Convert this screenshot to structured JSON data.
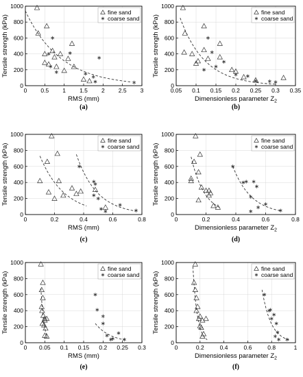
{
  "chart_data": [
    {
      "id": "a",
      "panel_label": "(a)",
      "type": "scatter",
      "xlabel": "RMS (mm)",
      "ylabel": "Tensile strength (kPa)",
      "xlim": [
        0,
        3
      ],
      "ylim": [
        0,
        1000
      ],
      "xticks": [
        0,
        0.5,
        1,
        1.5,
        2,
        2.5,
        3
      ],
      "xticklabels": [
        "0",
        "0.5",
        "1",
        "1.5",
        "2",
        "2.5",
        "3"
      ],
      "yticks": [
        0,
        200,
        400,
        600,
        800,
        1000
      ],
      "legend_position": "top-right",
      "series": [
        {
          "name": "fine sand",
          "marker": "triangle",
          "points": [
            [
              0.3,
              980
            ],
            [
              0.33,
              660
            ],
            [
              0.55,
              750
            ],
            [
              0.5,
              400
            ],
            [
              0.5,
              290
            ],
            [
              0.7,
              440
            ],
            [
              0.75,
              360
            ],
            [
              0.9,
              400
            ],
            [
              0.6,
              270
            ],
            [
              0.8,
              240
            ],
            [
              1.2,
              530
            ],
            [
              1.1,
              340
            ],
            [
              1.0,
              190
            ],
            [
              1.25,
              240
            ],
            [
              1.5,
              80
            ],
            [
              1.65,
              60
            ]
          ]
        },
        {
          "name": "coarse sand",
          "marker": "asterisk",
          "points": [
            [
              0.7,
              600
            ],
            [
              0.6,
              400
            ],
            [
              1.15,
              410
            ],
            [
              0.65,
              240
            ],
            [
              0.8,
              170
            ],
            [
              1.9,
              350
            ],
            [
              1.55,
              150
            ],
            [
              1.75,
              110
            ],
            [
              1.8,
              50
            ],
            [
              2.8,
              40
            ]
          ]
        }
      ],
      "fits": [
        {
          "x": [
            0,
            2.75
          ],
          "a": 940,
          "b": 1.1,
          "model": "exp"
        }
      ]
    },
    {
      "id": "b",
      "panel_label": "(b)",
      "type": "scatter",
      "xlabel": "Dimensionless parameter Z",
      "xlabel_sub": "2",
      "ylabel": "Tensile strength (kPa)",
      "xlim": [
        0.05,
        0.35
      ],
      "ylim": [
        0,
        1000
      ],
      "xticks": [
        0.05,
        0.1,
        0.15,
        0.2,
        0.25,
        0.3,
        0.35
      ],
      "xticklabels": [
        "0.05",
        "0.1",
        "0.15",
        "0.2",
        "0.25",
        "0.3",
        "0.35"
      ],
      "yticks": [
        0,
        200,
        400,
        600,
        800,
        1000
      ],
      "legend_position": "top-right",
      "series": [
        {
          "name": "fine sand",
          "marker": "triangle",
          "points": [
            [
              0.067,
              980
            ],
            [
              0.072,
              660
            ],
            [
              0.07,
              420
            ],
            [
              0.12,
              750
            ],
            [
              0.09,
              400
            ],
            [
              0.1,
              280
            ],
            [
              0.105,
              310
            ],
            [
              0.12,
              450
            ],
            [
              0.16,
              530
            ],
            [
              0.13,
              340
            ],
            [
              0.16,
              360
            ],
            [
              0.19,
              200
            ],
            [
              0.2,
              180
            ],
            [
              0.22,
              110
            ],
            [
              0.32,
              100
            ],
            [
              0.25,
              70
            ]
          ]
        },
        {
          "name": "coarse sand",
          "marker": "asterisk",
          "points": [
            [
              0.13,
              600
            ],
            [
              0.14,
              420
            ],
            [
              0.12,
              200
            ],
            [
              0.15,
              240
            ],
            [
              0.17,
              300
            ],
            [
              0.2,
              140
            ],
            [
              0.23,
              120
            ],
            [
              0.25,
              60
            ],
            [
              0.285,
              55
            ],
            [
              0.3,
              45
            ]
          ]
        }
      ],
      "fits": [
        {
          "x": [
            0.06,
            0.3
          ],
          "a": 1000,
          "b": 16,
          "x0": 0.05,
          "model": "exp"
        }
      ]
    },
    {
      "id": "c",
      "panel_label": "(c)",
      "type": "scatter",
      "xlabel": "RMS (mm)",
      "ylabel": "Tensile strength (kPa)",
      "xlim": [
        0,
        0.8
      ],
      "ylim": [
        0,
        1000
      ],
      "xticks": [
        0,
        0.2,
        0.4,
        0.6,
        0.8
      ],
      "xticklabels": [
        "0",
        "0.2",
        "0.4",
        "0.6",
        "0.8"
      ],
      "yticks": [
        0,
        200,
        400,
        600,
        800,
        1000
      ],
      "legend_position": "top-right",
      "series": [
        {
          "name": "fine sand",
          "marker": "triangle",
          "points": [
            [
              0.18,
              980
            ],
            [
              0.1,
              420
            ],
            [
              0.15,
              660
            ],
            [
              0.22,
              760
            ],
            [
              0.16,
              280
            ],
            [
              0.2,
              200
            ],
            [
              0.23,
              420
            ],
            [
              0.26,
              240
            ],
            [
              0.32,
              330
            ],
            [
              0.38,
              290
            ],
            [
              0.35,
              260
            ],
            [
              0.48,
              310
            ],
            [
              0.55,
              90
            ]
          ]
        },
        {
          "name": "coarse sand",
          "marker": "asterisk",
          "points": [
            [
              0.37,
              600
            ],
            [
              0.47,
              410
            ],
            [
              0.48,
              380
            ],
            [
              0.47,
              240
            ],
            [
              0.5,
              200
            ],
            [
              0.52,
              70
            ],
            [
              0.55,
              40
            ],
            [
              0.65,
              120
            ],
            [
              0.76,
              50
            ]
          ]
        }
      ],
      "fits": [
        {
          "x": [
            0.1,
            0.42
          ],
          "a": 730,
          "b": 6,
          "x0": 0.1,
          "model": "exp"
        },
        {
          "x": [
            0.35,
            0.76
          ],
          "a": 750,
          "b": 7,
          "x0": 0.35,
          "model": "exp"
        }
      ]
    },
    {
      "id": "d",
      "panel_label": "(d)",
      "type": "scatter",
      "xlabel": "Dimensionless parameter Z",
      "xlabel_sub": "2",
      "ylabel": "Tensile strength (kPa)",
      "xlim": [
        0,
        0.8
      ],
      "ylim": [
        0,
        1000
      ],
      "xticks": [
        0,
        0.2,
        0.4,
        0.6,
        0.8
      ],
      "xticklabels": [
        "0",
        "0.2",
        "0.4",
        "0.6",
        "0.8"
      ],
      "yticks": [
        0,
        200,
        400,
        600,
        800,
        1000
      ],
      "legend_position": "top-right",
      "series": [
        {
          "name": "fine sand",
          "marker": "triangle",
          "points": [
            [
              0.13,
              980
            ],
            [
              0.1,
              420
            ],
            [
              0.12,
              660
            ],
            [
              0.16,
              750
            ],
            [
              0.1,
              450
            ],
            [
              0.15,
              530
            ],
            [
              0.17,
              340
            ],
            [
              0.15,
              180
            ],
            [
              0.2,
              300
            ],
            [
              0.22,
              240
            ],
            [
              0.23,
              270
            ],
            [
              0.25,
              110
            ],
            [
              0.28,
              90
            ],
            [
              0.22,
              300
            ]
          ]
        },
        {
          "name": "coarse sand",
          "marker": "asterisk",
          "points": [
            [
              0.38,
              600
            ],
            [
              0.47,
              410
            ],
            [
              0.52,
              410
            ],
            [
              0.54,
              350
            ],
            [
              0.45,
              400
            ],
            [
              0.5,
              220
            ],
            [
              0.55,
              90
            ],
            [
              0.5,
              40
            ],
            [
              0.6,
              130
            ],
            [
              0.7,
              50
            ]
          ]
        }
      ],
      "fits": [
        {
          "x": [
            0.1,
            0.3
          ],
          "a": 720,
          "b": 11,
          "x0": 0.1,
          "model": "exp"
        },
        {
          "x": [
            0.38,
            0.7
          ],
          "a": 600,
          "b": 8,
          "x0": 0.38,
          "model": "exp"
        }
      ]
    },
    {
      "id": "e",
      "panel_label": "(e)",
      "type": "scatter",
      "xlabel": "RMS (mm)",
      "ylabel": "Tensile strength (kPa)",
      "xlim": [
        0,
        0.3
      ],
      "ylim": [
        0,
        1000
      ],
      "xticks": [
        0,
        0.05,
        0.1,
        0.15,
        0.2,
        0.25,
        0.3
      ],
      "xticklabels": [
        "0",
        "0.05",
        "0.1",
        "0.15",
        "0.2",
        "0.25",
        "0.3"
      ],
      "yticks": [
        0,
        200,
        400,
        600,
        800,
        1000
      ],
      "legend_position": "top-right",
      "series": [
        {
          "name": "fine sand",
          "marker": "triangle",
          "points": [
            [
              0.04,
              980
            ],
            [
              0.042,
              660
            ],
            [
              0.045,
              750
            ],
            [
              0.043,
              400
            ],
            [
              0.046,
              340
            ],
            [
              0.05,
              280
            ],
            [
              0.044,
              240
            ],
            [
              0.048,
              220
            ],
            [
              0.05,
              300
            ],
            [
              0.055,
              300
            ],
            [
              0.052,
              180
            ],
            [
              0.05,
              90
            ],
            [
              0.055,
              80
            ],
            [
              0.045,
              560
            ],
            [
              0.042,
              450
            ]
          ]
        },
        {
          "name": "coarse sand",
          "marker": "asterisk",
          "points": [
            [
              0.18,
              600
            ],
            [
              0.185,
              410
            ],
            [
              0.2,
              330
            ],
            [
              0.2,
              240
            ],
            [
              0.21,
              90
            ],
            [
              0.22,
              40
            ],
            [
              0.225,
              50
            ],
            [
              0.24,
              120
            ],
            [
              0.255,
              40
            ]
          ]
        }
      ],
      "fits": [
        {
          "x": [
            0.04,
            0.055
          ],
          "a": 680,
          "b": 130,
          "x0": 0.04,
          "model": "exp"
        },
        {
          "x": [
            0.18,
            0.255
          ],
          "a": 240,
          "b": 25,
          "x0": 0.18,
          "model": "exp"
        }
      ]
    },
    {
      "id": "f",
      "panel_label": "(f)",
      "type": "scatter",
      "xlabel": "Dimensionless parameter Z",
      "xlabel_sub": "2",
      "ylabel": "Tensile strength (kPa)",
      "xlim": [
        0,
        1
      ],
      "ylim": [
        0,
        1000
      ],
      "xticks": [
        0,
        0.2,
        0.4,
        0.6,
        0.8,
        1
      ],
      "xticklabels": [
        "0",
        "0.2",
        "0.4",
        "0.6",
        "0.8",
        "1"
      ],
      "yticks": [
        0,
        200,
        400,
        600,
        800,
        1000
      ],
      "legend_position": "top-right",
      "series": [
        {
          "name": "fine sand",
          "marker": "triangle",
          "points": [
            [
              0.16,
              980
            ],
            [
              0.15,
              750
            ],
            [
              0.16,
              660
            ],
            [
              0.17,
              560
            ],
            [
              0.18,
              450
            ],
            [
              0.17,
              400
            ],
            [
              0.2,
              330
            ],
            [
              0.19,
              300
            ],
            [
              0.22,
              280
            ],
            [
              0.2,
              210
            ],
            [
              0.21,
              190
            ],
            [
              0.23,
              110
            ],
            [
              0.22,
              80
            ],
            [
              0.25,
              300
            ]
          ]
        },
        {
          "name": "coarse sand",
          "marker": "asterisk",
          "points": [
            [
              0.74,
              600
            ],
            [
              0.79,
              410
            ],
            [
              0.78,
              400
            ],
            [
              0.82,
              350
            ],
            [
              0.8,
              300
            ],
            [
              0.84,
              240
            ],
            [
              0.85,
              130
            ],
            [
              0.83,
              80
            ],
            [
              0.86,
              40
            ],
            [
              0.93,
              40
            ]
          ]
        }
      ],
      "fits": [
        {
          "x": [
            0.14,
            0.26
          ],
          "a": 950,
          "b": 27,
          "x0": 0.14,
          "model": "exp"
        },
        {
          "x": [
            0.72,
            0.95
          ],
          "a": 660,
          "b": 13,
          "x0": 0.72,
          "model": "exp"
        }
      ]
    }
  ]
}
